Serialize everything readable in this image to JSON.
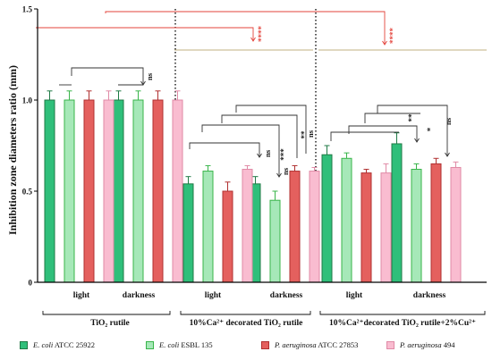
{
  "chart_data": {
    "type": "bar",
    "ylabel": "Inhibition zone diameters ratio (mm)",
    "ylim": [
      0,
      1.5
    ],
    "yticks": [
      "0",
      "0.5",
      "1.0",
      "1.5"
    ],
    "categories": [
      "light",
      "darkness",
      "light",
      "darkness",
      "light",
      "darkness"
    ],
    "groups": [
      {
        "label": "TiO₂ rutile",
        "categories": [
          "light",
          "darkness"
        ]
      },
      {
        "label": "10%Ca²⁺ decorated TiO₂ rutile",
        "categories": [
          "light",
          "darkness"
        ]
      },
      {
        "label": "10%Ca²⁺decorated TiO₂ rutile+2%Cu²⁺",
        "categories": [
          "light",
          "darkness"
        ]
      }
    ],
    "series": [
      {
        "name": "E. coli ATCC 25922",
        "name_italic": "E. coli",
        "name_rest": " ATCC 25922",
        "fill": "#2fbf7a",
        "edge": "#1f7a45",
        "values": [
          1.0,
          1.0,
          0.54,
          0.54,
          0.7,
          0.76
        ],
        "errors": [
          0.05,
          0.05,
          0.04,
          0.04,
          0.05,
          0.06
        ]
      },
      {
        "name": "E. coli ESBL 135",
        "name_italic": "E. coli",
        "name_rest": " ESBL 135",
        "fill": "#a6e8b8",
        "edge": "#39b54a",
        "values": [
          1.0,
          1.0,
          0.61,
          0.45,
          0.68,
          0.62
        ],
        "errors": [
          0.05,
          0.05,
          0.03,
          0.05,
          0.03,
          0.03
        ]
      },
      {
        "name": "P. aeruginosa ATCC 27853",
        "name_italic": "P. aeruginosa",
        "name_rest": " ATCC 27853",
        "fill": "#e4605e",
        "edge": "#b03030",
        "values": [
          1.0,
          1.0,
          0.5,
          0.61,
          0.6,
          0.65
        ],
        "errors": [
          0.05,
          0.05,
          0.05,
          0.03,
          0.02,
          0.03
        ]
      },
      {
        "name": "P. aeruginosa 494",
        "name_italic": "P. aeruginosa",
        "name_rest": " 494",
        "fill": "#f9bcd0",
        "edge": "#e08aa6",
        "values": [
          1.0,
          1.0,
          0.62,
          0.61,
          0.6,
          0.63
        ],
        "errors": [
          0.05,
          0.05,
          0.02,
          0.02,
          0.05,
          0.03
        ]
      }
    ],
    "annotations": [
      "****",
      "****",
      "ns",
      "ns",
      "ns",
      "***",
      "**",
      "**",
      "*",
      "ns"
    ],
    "colors": {
      "axis": "#000000",
      "bracket": "#333333",
      "sig_red": "#e3433b",
      "sig_line": "#c2b280"
    }
  }
}
